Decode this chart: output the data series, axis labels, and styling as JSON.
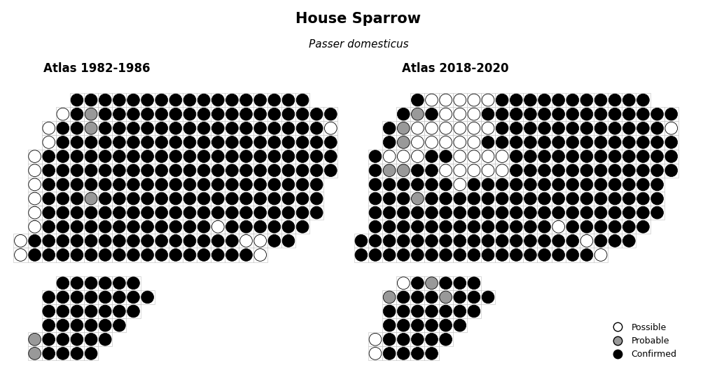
{
  "title": "House Sparrow",
  "subtitle": "Passer domesticus",
  "left_label": "Atlas 1982-1986",
  "right_label": "Atlas 2018-2020",
  "background_color": "white",
  "grid_color": "#bbbbbb",
  "title_fontsize": 15,
  "subtitle_fontsize": 11,
  "atlas_label_fontsize": 12,
  "atlas1_grid": [
    [
      0,
      0,
      0,
      0,
      3,
      3,
      3,
      3,
      3,
      3,
      3,
      3,
      3,
      3,
      3,
      3,
      3,
      3,
      3,
      3,
      3,
      0,
      0
    ],
    [
      0,
      0,
      0,
      1,
      3,
      2,
      3,
      3,
      3,
      3,
      3,
      3,
      3,
      3,
      3,
      3,
      3,
      3,
      3,
      3,
      3,
      3,
      3
    ],
    [
      0,
      0,
      1,
      3,
      3,
      2,
      3,
      3,
      3,
      3,
      3,
      3,
      3,
      3,
      3,
      3,
      3,
      3,
      3,
      3,
      3,
      3,
      1
    ],
    [
      0,
      0,
      1,
      3,
      3,
      3,
      3,
      3,
      3,
      3,
      3,
      3,
      3,
      3,
      3,
      3,
      3,
      3,
      3,
      3,
      3,
      3,
      3
    ],
    [
      0,
      1,
      3,
      3,
      3,
      3,
      3,
      3,
      3,
      3,
      3,
      3,
      3,
      3,
      3,
      3,
      3,
      3,
      3,
      3,
      3,
      3,
      3
    ],
    [
      0,
      1,
      3,
      3,
      3,
      3,
      3,
      3,
      3,
      3,
      3,
      3,
      3,
      3,
      3,
      3,
      3,
      3,
      3,
      3,
      3,
      3,
      3
    ],
    [
      0,
      1,
      3,
      3,
      3,
      3,
      3,
      3,
      3,
      3,
      3,
      3,
      3,
      3,
      3,
      3,
      3,
      3,
      3,
      3,
      3,
      3,
      0
    ],
    [
      0,
      1,
      3,
      3,
      3,
      2,
      3,
      3,
      3,
      3,
      3,
      3,
      3,
      3,
      3,
      3,
      3,
      3,
      3,
      3,
      3,
      3,
      0
    ],
    [
      0,
      1,
      3,
      3,
      3,
      3,
      3,
      3,
      3,
      3,
      3,
      3,
      3,
      3,
      3,
      3,
      3,
      3,
      3,
      3,
      3,
      3,
      0
    ],
    [
      0,
      1,
      3,
      3,
      3,
      3,
      3,
      3,
      3,
      3,
      3,
      3,
      3,
      3,
      1,
      3,
      3,
      3,
      3,
      3,
      3,
      0,
      0
    ],
    [
      1,
      3,
      3,
      3,
      3,
      3,
      3,
      3,
      3,
      3,
      3,
      3,
      3,
      3,
      3,
      3,
      1,
      1,
      3,
      3,
      0,
      0,
      0
    ],
    [
      1,
      3,
      3,
      3,
      3,
      3,
      3,
      3,
      3,
      3,
      3,
      3,
      3,
      3,
      3,
      3,
      3,
      1,
      0,
      0,
      0,
      0,
      0
    ],
    [
      0,
      0,
      0,
      0,
      0,
      0,
      0,
      0,
      0,
      0,
      0,
      0,
      0,
      0,
      0,
      0,
      0,
      0,
      0,
      0,
      0,
      0,
      0
    ],
    [
      0,
      0,
      0,
      3,
      3,
      3,
      3,
      3,
      3,
      0,
      0,
      0,
      0,
      0,
      0,
      0,
      0,
      0,
      0,
      0,
      0,
      0,
      0
    ],
    [
      0,
      0,
      3,
      3,
      3,
      3,
      3,
      3,
      3,
      3,
      0,
      0,
      0,
      0,
      0,
      0,
      0,
      0,
      0,
      0,
      0,
      0,
      0
    ],
    [
      0,
      0,
      3,
      3,
      3,
      3,
      3,
      3,
      3,
      0,
      0,
      0,
      0,
      0,
      0,
      0,
      0,
      0,
      0,
      0,
      0,
      0,
      0
    ],
    [
      0,
      0,
      3,
      3,
      3,
      3,
      3,
      3,
      0,
      0,
      0,
      0,
      0,
      0,
      0,
      0,
      0,
      0,
      0,
      0,
      0,
      0,
      0
    ],
    [
      0,
      2,
      3,
      3,
      3,
      3,
      3,
      0,
      0,
      0,
      0,
      0,
      0,
      0,
      0,
      0,
      0,
      0,
      0,
      0,
      0,
      0,
      0
    ],
    [
      0,
      2,
      3,
      3,
      3,
      3,
      0,
      0,
      0,
      0,
      0,
      0,
      0,
      0,
      0,
      0,
      0,
      0,
      0,
      0,
      0,
      0,
      0
    ]
  ],
  "atlas2_grid": [
    [
      0,
      0,
      0,
      0,
      3,
      1,
      1,
      1,
      1,
      1,
      3,
      3,
      3,
      3,
      3,
      3,
      3,
      3,
      3,
      3,
      3,
      0,
      0
    ],
    [
      0,
      0,
      0,
      3,
      2,
      3,
      1,
      1,
      1,
      3,
      3,
      3,
      3,
      3,
      3,
      3,
      3,
      3,
      3,
      3,
      3,
      3,
      3
    ],
    [
      0,
      0,
      3,
      2,
      1,
      1,
      1,
      1,
      1,
      1,
      3,
      3,
      3,
      3,
      3,
      3,
      3,
      3,
      3,
      3,
      3,
      3,
      1
    ],
    [
      0,
      0,
      3,
      2,
      1,
      1,
      1,
      1,
      1,
      3,
      3,
      3,
      3,
      3,
      3,
      3,
      3,
      3,
      3,
      3,
      3,
      3,
      3
    ],
    [
      0,
      3,
      1,
      1,
      1,
      3,
      3,
      1,
      1,
      1,
      1,
      3,
      3,
      3,
      3,
      3,
      3,
      3,
      3,
      3,
      3,
      3,
      3
    ],
    [
      0,
      3,
      2,
      2,
      3,
      3,
      1,
      1,
      1,
      1,
      1,
      3,
      3,
      3,
      3,
      3,
      3,
      3,
      3,
      3,
      3,
      3,
      3
    ],
    [
      0,
      3,
      3,
      3,
      3,
      3,
      3,
      1,
      3,
      3,
      3,
      3,
      3,
      3,
      3,
      3,
      3,
      3,
      3,
      3,
      3,
      3,
      0
    ],
    [
      0,
      3,
      3,
      3,
      2,
      3,
      3,
      3,
      3,
      3,
      3,
      3,
      3,
      3,
      3,
      3,
      3,
      3,
      3,
      3,
      3,
      3,
      0
    ],
    [
      0,
      3,
      3,
      3,
      3,
      3,
      3,
      3,
      3,
      3,
      3,
      3,
      3,
      3,
      3,
      3,
      3,
      3,
      3,
      3,
      3,
      3,
      0
    ],
    [
      0,
      3,
      3,
      3,
      3,
      3,
      3,
      3,
      3,
      3,
      3,
      3,
      3,
      3,
      1,
      3,
      3,
      3,
      3,
      3,
      3,
      0,
      0
    ],
    [
      3,
      3,
      3,
      3,
      3,
      3,
      3,
      3,
      3,
      3,
      3,
      3,
      3,
      3,
      3,
      3,
      1,
      3,
      3,
      3,
      0,
      0,
      0
    ],
    [
      3,
      3,
      3,
      3,
      3,
      3,
      3,
      3,
      3,
      3,
      3,
      3,
      3,
      3,
      3,
      3,
      3,
      1,
      0,
      0,
      0,
      0,
      0
    ],
    [
      0,
      0,
      0,
      0,
      0,
      0,
      0,
      0,
      0,
      0,
      0,
      0,
      0,
      0,
      0,
      0,
      0,
      0,
      0,
      0,
      0,
      0,
      0
    ],
    [
      0,
      0,
      0,
      1,
      3,
      2,
      3,
      3,
      3,
      0,
      0,
      0,
      0,
      0,
      0,
      0,
      0,
      0,
      0,
      0,
      0,
      0,
      0
    ],
    [
      0,
      0,
      2,
      3,
      3,
      3,
      2,
      3,
      3,
      3,
      0,
      0,
      0,
      0,
      0,
      0,
      0,
      0,
      0,
      0,
      0,
      0,
      0
    ],
    [
      0,
      0,
      3,
      3,
      3,
      3,
      3,
      3,
      3,
      0,
      0,
      0,
      0,
      0,
      0,
      0,
      0,
      0,
      0,
      0,
      0,
      0,
      0
    ],
    [
      0,
      0,
      3,
      3,
      3,
      3,
      3,
      3,
      0,
      0,
      0,
      0,
      0,
      0,
      0,
      0,
      0,
      0,
      0,
      0,
      0,
      0,
      0
    ],
    [
      0,
      1,
      3,
      3,
      3,
      3,
      3,
      0,
      0,
      0,
      0,
      0,
      0,
      0,
      0,
      0,
      0,
      0,
      0,
      0,
      0,
      0,
      0
    ],
    [
      0,
      1,
      3,
      3,
      3,
      3,
      0,
      0,
      0,
      0,
      0,
      0,
      0,
      0,
      0,
      0,
      0,
      0,
      0,
      0,
      0,
      0,
      0
    ]
  ]
}
